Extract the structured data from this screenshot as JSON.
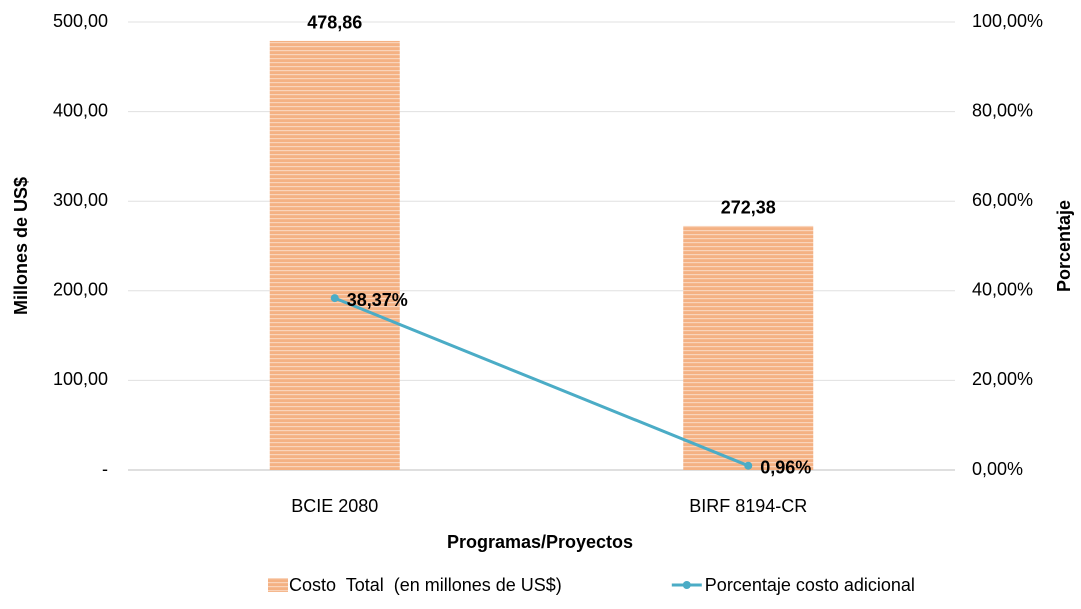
{
  "chart_data": {
    "type": "bar",
    "x_label": "Programas/Proyectos",
    "y_label": "Millones de US$",
    "y2_label": "Porcentaje",
    "categories": [
      "BCIE 2080",
      "BIRF 8194-CR"
    ],
    "series": [
      {
        "name": "Costo  Total  (en millones de US$)",
        "type": "bar",
        "color": "#f4b183",
        "values": [
          478.86,
          272.38
        ],
        "value_labels": [
          "478,86",
          "272,38"
        ]
      },
      {
        "name": "Porcentaje costo adicional",
        "type": "line",
        "axis": "y2",
        "color": "#4bacc6",
        "values": [
          38.37,
          0.96
        ],
        "value_labels": [
          "38,37%",
          "0,96%"
        ]
      }
    ],
    "ylim": [
      0,
      500
    ],
    "yticks": [
      {
        "value": 0,
        "label": "-"
      },
      {
        "value": 100,
        "label": "100,00"
      },
      {
        "value": 200,
        "label": "200,00"
      },
      {
        "value": 300,
        "label": "300,00"
      },
      {
        "value": 400,
        "label": "400,00"
      },
      {
        "value": 500,
        "label": "500,00"
      }
    ],
    "y2lim": [
      0,
      100
    ],
    "y2ticks": [
      {
        "value": 0,
        "label": "0,00%"
      },
      {
        "value": 20,
        "label": "20,00%"
      },
      {
        "value": 40,
        "label": "40,00%"
      },
      {
        "value": 60,
        "label": "60,00%"
      },
      {
        "value": 80,
        "label": "80,00%"
      },
      {
        "value": 100,
        "label": "100,00%"
      }
    ],
    "grid": true,
    "legend": "bottom"
  }
}
